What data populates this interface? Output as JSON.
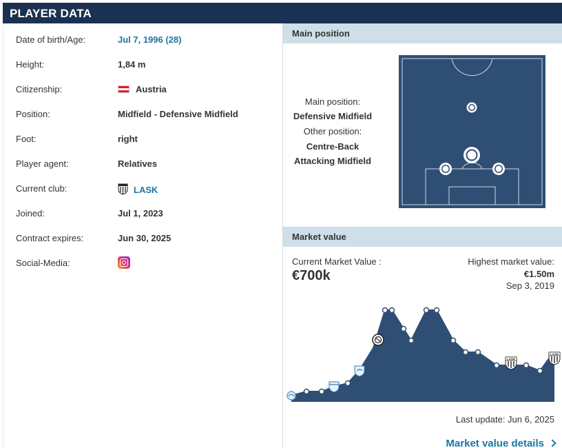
{
  "header": {
    "title": "PLAYER DATA"
  },
  "player": {
    "rows": [
      {
        "label": "Date of birth/Age:",
        "value": "Jul 7, 1996 (28)"
      },
      {
        "label": "Height:",
        "value": "1,84 m"
      },
      {
        "label": "Citizenship:",
        "value": "Austria"
      },
      {
        "label": "Position:",
        "value": "Midfield - Defensive Midfield"
      },
      {
        "label": "Foot:",
        "value": "right"
      },
      {
        "label": "Player agent:",
        "value": "Relatives"
      },
      {
        "label": "Current club:",
        "value": "LASK"
      },
      {
        "label": "Joined:",
        "value": "Jul 1, 2023"
      },
      {
        "label": "Contract expires:",
        "value": "Jun 30, 2025"
      },
      {
        "label": "Social-Media:",
        "value": ""
      }
    ]
  },
  "main_position": {
    "heading": "Main position",
    "main_label": "Main position:",
    "main_value": "Defensive Midfield",
    "other_label": "Other position:",
    "other_values": [
      "Centre-Back",
      "Attacking Midfield"
    ]
  },
  "market_value": {
    "heading": "Market value",
    "current_label": "Current Market Value :",
    "current_value": "€700k",
    "highest_label": "Highest market value:",
    "highest_value": "€1.50m",
    "highest_date": "Sep 3, 2019",
    "last_update": "Last update: Jun 6, 2025",
    "details_link": "Market value details",
    "club_badge_text": "LASK"
  },
  "colors": {
    "header_bg": "#1a3151",
    "section_bg": "#cfdfe9",
    "link": "#1d75a3",
    "pitch": "#2f4e74",
    "area_fill": "#2f4e74"
  },
  "icons": {
    "flag": "austria-flag-icon",
    "club": "lask-crest-icon",
    "social": "instagram-icon",
    "details": "chevron-right-icon"
  }
}
